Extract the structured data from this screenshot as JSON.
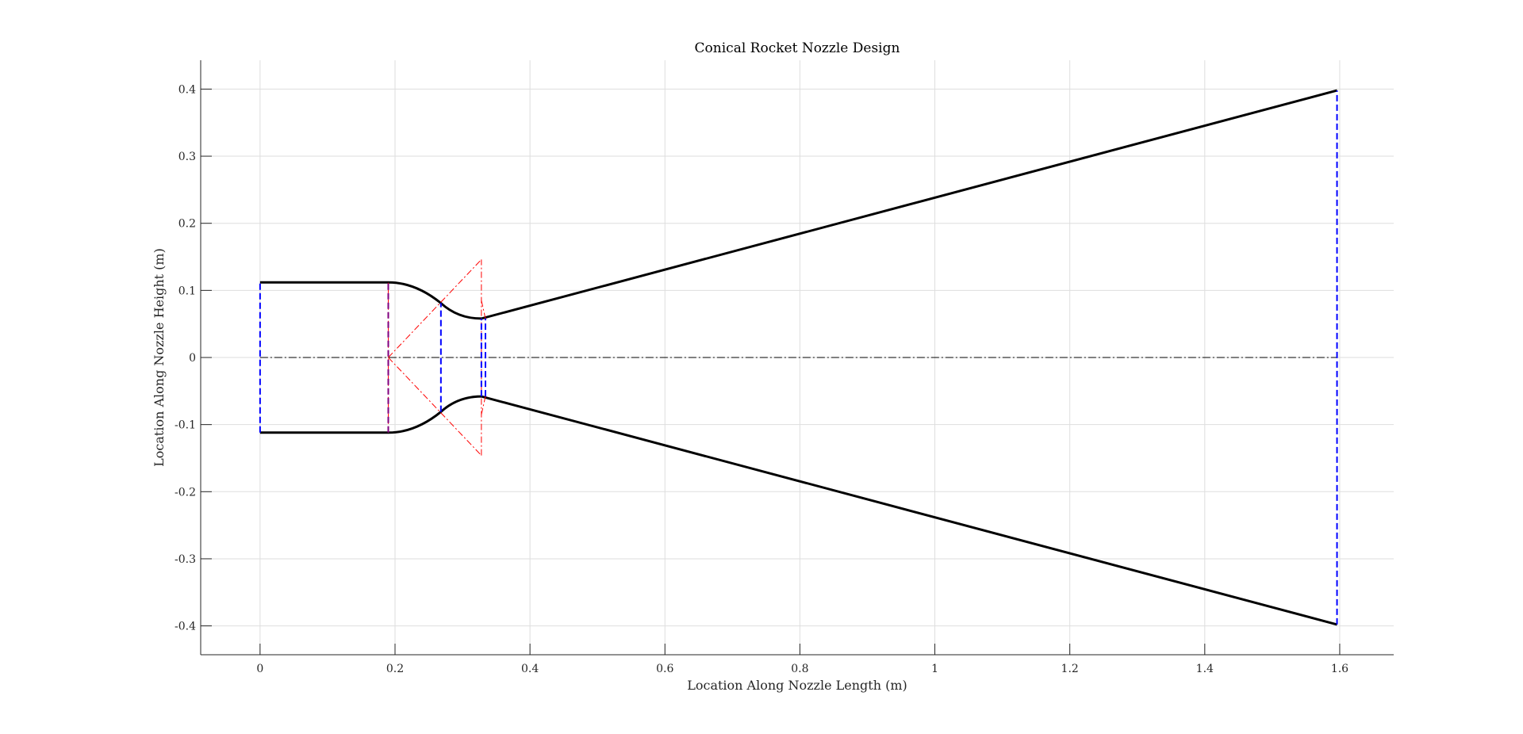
{
  "chart_data": {
    "type": "line",
    "title": "Conical Rocket Nozzle Design",
    "xlabel": "Location Along Nozzle Length (m)",
    "ylabel": "Location Along Nozzle Height (m)",
    "xlim": [
      -0.088,
      1.68
    ],
    "ylim": [
      -0.443,
      0.443
    ],
    "xticks": [
      0,
      0.2,
      0.4,
      0.6,
      0.8,
      1,
      1.2,
      1.4,
      1.6
    ],
    "xtick_labels": [
      "0",
      "0.2",
      "0.4",
      "0.6",
      "0.8",
      "1",
      "1.2",
      "1.4",
      "1.6"
    ],
    "yticks": [
      -0.4,
      -0.3,
      -0.2,
      -0.1,
      0,
      0.1,
      0.2,
      0.3,
      0.4
    ],
    "ytick_labels": [
      "-0.4",
      "-0.3",
      "-0.2",
      "-0.1",
      "0",
      "0.1",
      "0.2",
      "0.3",
      "0.4"
    ],
    "grid": true,
    "colors": {
      "wall": "#000000",
      "stations": "#0000ff",
      "construction": "#ff0000",
      "centerline": "#000000",
      "grid": "#dedede"
    },
    "wall": {
      "chamber_radius": 0.112,
      "chamber_start": 0,
      "converge_start": 0.19,
      "arc_junction": [
        0.268,
        0.081
      ],
      "throat": [
        0.328,
        0.058
      ],
      "exit": [
        1.596,
        0.398
      ]
    },
    "stations": [
      {
        "x": 0,
        "y": [
          -0.112,
          0.112
        ],
        "color": "#0000ff"
      },
      {
        "x": 0.19,
        "y": [
          -0.112,
          0.112
        ],
        "color": "#800080"
      },
      {
        "x": 0.268,
        "y": [
          -0.081,
          0.081
        ],
        "color": "#0000ff"
      },
      {
        "x": 0.328,
        "y": [
          -0.058,
          0.058
        ],
        "color": "#0000ff"
      },
      {
        "x": 0.334,
        "y": [
          -0.058,
          0.058
        ],
        "color": "#0000ff"
      },
      {
        "x": 1.596,
        "y": [
          -0.398,
          0.398
        ],
        "color": "#0000ff"
      }
    ],
    "construction_lines": [
      {
        "x": [
          0.19,
          0.328
        ],
        "y": [
          0,
          0.146
        ]
      },
      {
        "x": [
          0.19,
          0.328
        ],
        "y": [
          0,
          -0.146
        ]
      },
      {
        "x": [
          0.328,
          0.328
        ],
        "y": [
          -0.146,
          0.146
        ]
      },
      {
        "x": [
          0.19,
          0.19
        ],
        "y": [
          -0.112,
          0.112
        ]
      },
      {
        "x": [
          0.328,
          0.334
        ],
        "y": [
          0.085,
          0.058
        ]
      },
      {
        "x": [
          0.328,
          0.334
        ],
        "y": [
          -0.085,
          -0.058
        ]
      }
    ],
    "centerline": {
      "x": [
        0,
        1.596
      ],
      "y": [
        0,
        0
      ]
    }
  }
}
